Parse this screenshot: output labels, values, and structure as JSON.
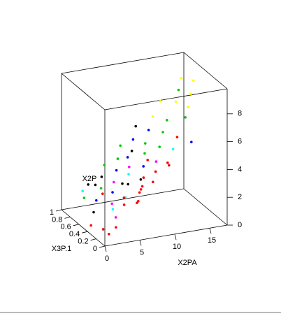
{
  "chart_data": {
    "type": "scatter3d",
    "x_label": "X2PA",
    "y_label": "X3P.1",
    "z_label": "X2P",
    "xlim": [
      0,
      17.5
    ],
    "ylim": [
      0,
      1
    ],
    "zlim": [
      0,
      9.8
    ],
    "xticks": [
      0,
      5,
      10,
      15
    ],
    "yticks": [
      0,
      0.2,
      0.4,
      0.6,
      0.8,
      1
    ],
    "zticks": [
      0,
      2,
      4,
      6,
      8
    ],
    "points": {
      "x": [
        1,
        1.5,
        2,
        2.2,
        2.5,
        3,
        3.2,
        3.5,
        3.8,
        4,
        4.2,
        4.5,
        4.8,
        5,
        5.2,
        5.5,
        5.8,
        6,
        6.2,
        6.5,
        6.8,
        7,
        7.2,
        7.5,
        7.8,
        8,
        8.2,
        8.5,
        8.8,
        9,
        9.2,
        9.5,
        9.8,
        10,
        10.3,
        10.6,
        11,
        11.4,
        11.8,
        12.2,
        12.6,
        13,
        13.5,
        14,
        14.5,
        15,
        15.5,
        16,
        16.5,
        17,
        0.5,
        1.2,
        2.8,
        3.4,
        4.6,
        5.6,
        6.6,
        7.6,
        8.6,
        9.6,
        2.4,
        3.6,
        5.4,
        6.4,
        7.4
      ],
      "y": [
        0.2,
        0.5,
        0.8,
        0.1,
        0.6,
        0.3,
        0.9,
        0.4,
        0.7,
        0.2,
        0.5,
        0.8,
        0.3,
        0.6,
        0.1,
        0.9,
        0.4,
        0.7,
        0.2,
        0.5,
        0.8,
        0.3,
        0.6,
        0.1,
        0.9,
        0.4,
        0.7,
        0.2,
        0.5,
        0.8,
        0.3,
        0.6,
        0.1,
        0.9,
        0.4,
        0.7,
        0.2,
        0.5,
        0.8,
        0.3,
        0.6,
        0.1,
        0.9,
        0.4,
        0.7,
        0.5,
        0.8,
        0.6,
        0.9,
        0.7,
        0.4,
        0.1,
        0.2,
        0.6,
        0.3,
        0.5,
        0.2,
        0.7,
        0.4,
        0.1,
        0.9,
        0.8,
        0.1,
        0.2,
        0.3
      ],
      "z": [
        0.6,
        1.0,
        1.2,
        0.9,
        1.5,
        1.6,
        1.8,
        1.7,
        2.0,
        2.1,
        2.2,
        2.5,
        2.3,
        2.6,
        2.4,
        3.0,
        2.9,
        3.1,
        2.8,
        3.3,
        3.6,
        3.4,
        3.5,
        3.7,
        4.2,
        4.0,
        4.3,
        4.1,
        4.6,
        4.8,
        4.5,
        5.0,
        4.7,
        5.4,
        5.2,
        5.6,
        5.5,
        5.9,
        6.2,
        6.0,
        6.4,
        6.1,
        6.9,
        7.0,
        7.3,
        7.4,
        7.8,
        8.0,
        8.3,
        8.6,
        0.4,
        0.5,
        1.3,
        1.9,
        2.3,
        2.7,
        3.2,
        3.9,
        4.4,
        4.9,
        1.4,
        2.0,
        2.5,
        3.0,
        3.5
      ],
      "colors": [
        "#ff0000",
        "#000000",
        "#00cc00",
        "#ff0000",
        "#0000ff",
        "#00ffff",
        "#000000",
        "#ff00ff",
        "#00cc00",
        "#ff0000",
        "#0000ff",
        "#000000",
        "#00ffff",
        "#ff00ff",
        "#ff0000",
        "#00cc00",
        "#000000",
        "#0000ff",
        "#ff0000",
        "#00ffff",
        "#00cc00",
        "#000000",
        "#ff00ff",
        "#ff0000",
        "#00cc00",
        "#0000ff",
        "#000000",
        "#ff0000",
        "#00cc00",
        "#0000ff",
        "#ff00ff",
        "#00cc00",
        "#ff0000",
        "#000000",
        "#00cc00",
        "#0000ff",
        "#00ffff",
        "#00cc00",
        "#ffff00",
        "#ff0000",
        "#00cc00",
        "#0000ff",
        "#ffff00",
        "#00cc00",
        "#ffff00",
        "#ffff00",
        "#00cc00",
        "#ffff00",
        "#ffff00",
        "#ffff00",
        "#ff0000",
        "#ff0000",
        "#ff00ff",
        "#ff0000",
        "#ff0000",
        "#000000",
        "#ff0000",
        "#0000ff",
        "#ff0000",
        "#ff0000",
        "#00ffff",
        "#000000",
        "#ff0000",
        "#ff0000",
        "#ff0000"
      ]
    }
  }
}
